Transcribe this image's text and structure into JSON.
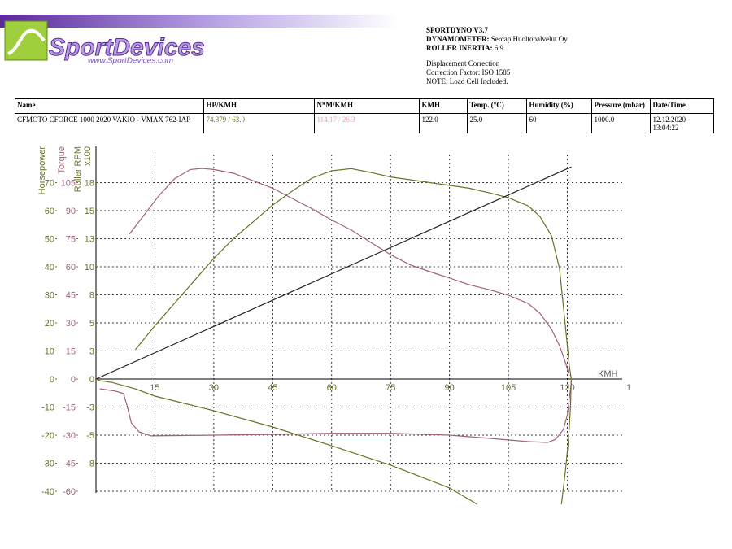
{
  "header": {
    "logo": "SportDevices",
    "logo_url": "www.SportDevices.com",
    "software": "SPORTDYNO V3.7",
    "dynamometer_label": "DYNAMOMETER:",
    "dynamometer": "Sercap Huoltopalvelut Oy",
    "inertia_label": "ROLLER INERTIA:",
    "inertia": "6,9",
    "notes": [
      "Displacement Correction",
      "Correction Factor: ISO 1585",
      "NOTE: Load Cell Included."
    ]
  },
  "table": {
    "header": [
      "Name",
      "HP/KMH",
      "N*M/KMH",
      "KMH",
      "Temp. (°C)",
      "Humidity (%)",
      "Pressure (mbar)",
      "Date/Time"
    ],
    "rows": [
      [
        "CFMOTO CFORCE 1000 2020 VAKIO - VMAX 762-IAP",
        "74.379 / 63.0",
        "114.17 / 26.3",
        "122.0",
        "25.0",
        "60",
        "1000.0",
        "12.12.2020 13:04:22"
      ]
    ]
  },
  "chart_data": {
    "type": "line",
    "xlabel": "KMH",
    "xlim": [
      0,
      135
    ],
    "xticks": [
      15,
      30,
      45,
      60,
      75,
      90,
      105,
      120,
      {
        "value": 135,
        "label": "1"
      }
    ],
    "grid": true,
    "y_axes": [
      {
        "label": "Horsepower",
        "color": "#6b7224",
        "ylim": [
          -40,
          80
        ],
        "yticks": [
          70,
          60,
          50,
          40,
          30,
          20,
          10,
          0,
          -10,
          -20,
          -30,
          -40
        ]
      },
      {
        "label": "Torque",
        "color": "#a0607a",
        "ylim": [
          -60,
          120
        ],
        "yticks": [
          105,
          90,
          75,
          60,
          45,
          30,
          15,
          0,
          -15,
          -30,
          -45,
          -60
        ]
      },
      {
        "label": "Roller RPM",
        "sublabel": "x100",
        "color": "#6b7224",
        "ylim": [
          -10,
          20
        ],
        "yticks": [
          {
            "value": 17.5,
            "label": "18"
          },
          15,
          {
            "value": 12.5,
            "label": "13"
          },
          10,
          {
            "value": 7.5,
            "label": "8"
          },
          5,
          {
            "value": 2.5,
            "label": "3"
          },
          0,
          {
            "value": -2.5,
            "label": "-3"
          },
          -5,
          {
            "value": -7.5,
            "label": "-8"
          }
        ]
      }
    ],
    "series": [
      {
        "axis": 0,
        "color": "#6b7224",
        "x": [
          10,
          15,
          20,
          25,
          30,
          35,
          40,
          45,
          50,
          55,
          60,
          65,
          70,
          75,
          80,
          85,
          90,
          95,
          100,
          105,
          110,
          113,
          116,
          118,
          119.5,
          120.5,
          121,
          120.8,
          120.3,
          119.5,
          118.5
        ],
        "values": [
          10.4,
          19,
          27,
          35,
          43,
          50,
          56,
          62,
          67,
          71.6,
          74.2,
          75,
          73.6,
          72,
          71,
          70,
          69,
          68,
          66.4,
          64.6,
          61.7,
          58,
          51,
          39.4,
          19,
          4.6,
          0,
          -9.9,
          -21.4,
          -33,
          -44.6
        ]
      },
      {
        "axis": 1,
        "color": "#a0607a",
        "x": [
          8.5,
          12,
          16,
          20,
          24,
          27,
          30,
          35,
          40,
          45,
          50,
          55,
          60,
          65,
          70,
          75,
          80,
          85,
          90,
          95,
          100,
          105,
          110,
          113,
          116,
          118,
          119.5,
          120.5
        ],
        "values": [
          77.4,
          87,
          98,
          107,
          112,
          112.6,
          112,
          110,
          106,
          102,
          96.5,
          91,
          85,
          79.6,
          73,
          66.5,
          61,
          57.4,
          54,
          50.4,
          47.8,
          44.8,
          40.4,
          35.2,
          26.5,
          17.8,
          9,
          1.7
        ]
      },
      {
        "axis": 2,
        "color": "#222222",
        "x": [
          0,
          121
        ],
        "values": [
          0,
          18.9
        ]
      },
      {
        "axis": 0,
        "color": "#6b7224",
        "x": [
          0,
          1,
          4,
          10,
          15,
          30,
          45,
          60,
          75,
          90,
          97
        ],
        "values": [
          0,
          -0.6,
          -1.2,
          -3.5,
          -6.1,
          -11.3,
          -17.1,
          -23.8,
          -30.7,
          -38.8,
          -44.6
        ]
      },
      {
        "axis": 1,
        "color": "#a0607a",
        "x": [
          1,
          5,
          7,
          8,
          9,
          11,
          14,
          30,
          45,
          60,
          75,
          90,
          100,
          110,
          115,
          117,
          119,
          120,
          120.5,
          121
        ],
        "values": [
          -5.2,
          -6.5,
          -7.8,
          -14.8,
          -23.5,
          -28.3,
          -30.4,
          -30,
          -29.6,
          -29,
          -29,
          -30,
          -31.7,
          -33.5,
          -33.9,
          -32.2,
          -27,
          -19.1,
          -10.4,
          -1.7
        ]
      }
    ]
  }
}
